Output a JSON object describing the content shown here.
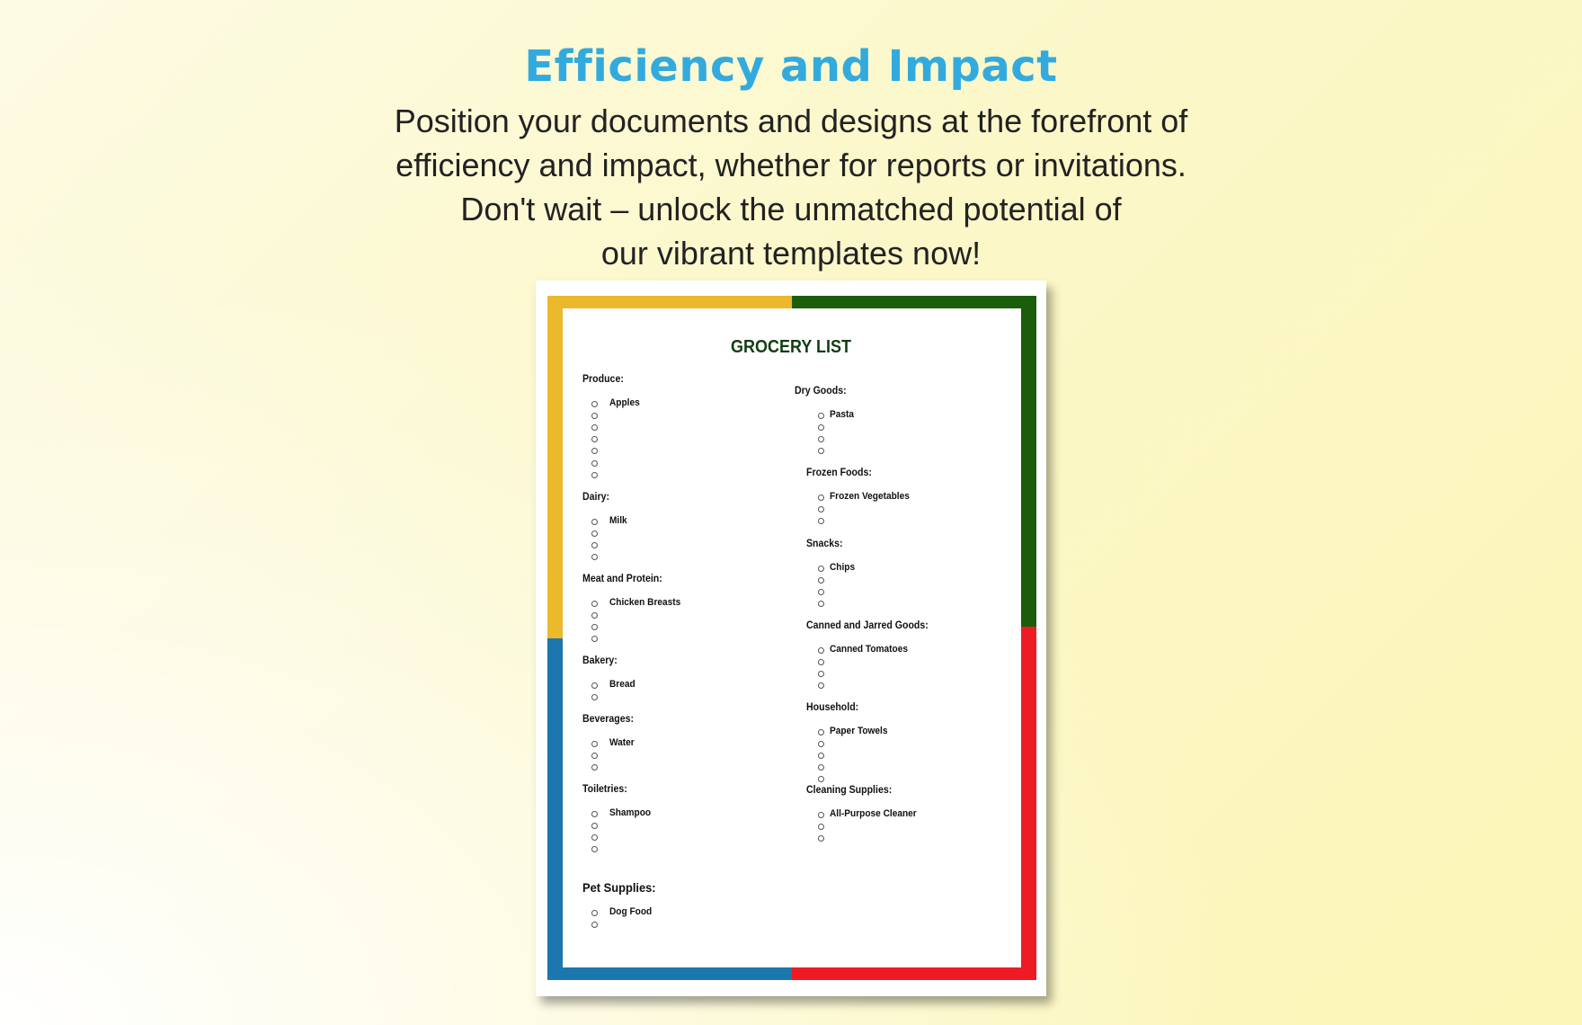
{
  "header": {
    "title": "Efficiency and Impact",
    "lines": [
      "Position your documents and designs at the forefront of",
      "efficiency and impact, whether for reports or invitations.",
      "Don't wait – unlock the unmatched potential of",
      "our vibrant templates now!"
    ]
  },
  "document": {
    "title": "GROCERY LIST",
    "frame_colors": {
      "top_left": "#ecb82c",
      "top_right": "#1a5e0c",
      "bottom_left": "#1b77ad",
      "bottom_right": "#ee1b24"
    },
    "left_column": [
      {
        "name": "Produce:",
        "items": [
          "Apples",
          "",
          "",
          "",
          "",
          "",
          ""
        ]
      },
      {
        "name": "Dairy:",
        "items": [
          "Milk",
          "",
          "",
          ""
        ]
      },
      {
        "name": "Meat and Protein:",
        "items": [
          "Chicken Breasts",
          "",
          "",
          ""
        ]
      },
      {
        "name": "Bakery:",
        "items": [
          "Bread",
          ""
        ]
      },
      {
        "name": "Beverages:",
        "items": [
          "Water",
          "",
          ""
        ]
      },
      {
        "name": "Toiletries:",
        "items": [
          "Shampoo",
          "",
          "",
          ""
        ]
      },
      {
        "name": "Pet Supplies:",
        "items": [
          "Dog Food",
          ""
        ]
      }
    ],
    "right_column": [
      {
        "name": "Dry Goods:",
        "items": [
          "Pasta",
          "",
          "",
          ""
        ]
      },
      {
        "name": "Frozen Foods:",
        "items": [
          "Frozen Vegetables",
          "",
          ""
        ]
      },
      {
        "name": "Snacks:",
        "items": [
          "Chips",
          "",
          "",
          ""
        ]
      },
      {
        "name": "Canned and Jarred Goods:",
        "items": [
          "Canned Tomatoes",
          "",
          "",
          ""
        ]
      },
      {
        "name": "Household:",
        "items": [
          "Paper Towels",
          "",
          "",
          "",
          ""
        ]
      },
      {
        "name": "Cleaning Supplies:",
        "items": [
          "All-Purpose Cleaner",
          "",
          ""
        ]
      }
    ]
  }
}
